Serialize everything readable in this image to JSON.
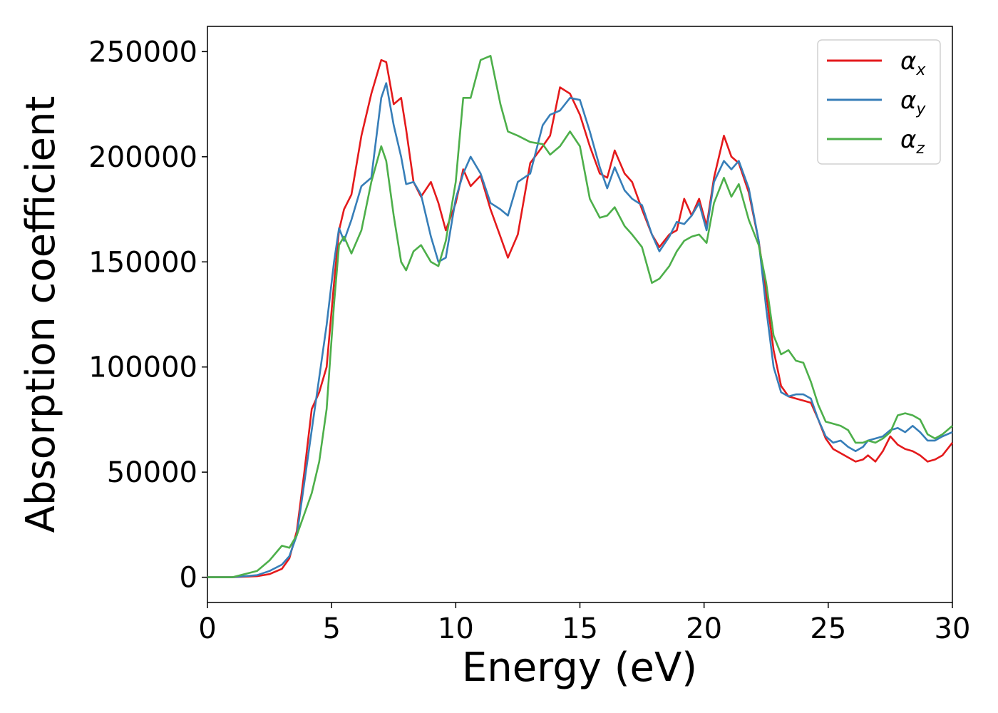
{
  "chart_data": {
    "type": "line",
    "title": "",
    "xlabel": "Energy (eV)",
    "ylabel": "Absorption coefficient",
    "xlim": [
      0,
      30
    ],
    "ylim": [
      -12000,
      262000
    ],
    "x_ticks": [
      "0",
      "5",
      "10",
      "15",
      "20",
      "25",
      "30"
    ],
    "y_ticks": [
      "0",
      "50000",
      "100000",
      "150000",
      "200000",
      "250000"
    ],
    "grid": false,
    "legend_position": "top-right",
    "series": [
      {
        "name": "α_x",
        "label_main": "α",
        "label_sub": "x",
        "color": "#e41a1c",
        "x": [
          0,
          1,
          2,
          2.5,
          3,
          3.3,
          3.6,
          3.9,
          4.2,
          4.5,
          4.8,
          5.1,
          5.3,
          5.5,
          5.8,
          6.2,
          6.6,
          7.0,
          7.2,
          7.5,
          7.8,
          8.0,
          8.3,
          8.6,
          9.0,
          9.3,
          9.6,
          10.0,
          10.3,
          10.6,
          11.0,
          11.4,
          11.8,
          12.1,
          12.5,
          13.0,
          13.5,
          13.8,
          14.2,
          14.6,
          15.0,
          15.4,
          15.8,
          16.1,
          16.4,
          16.8,
          17.1,
          17.5,
          17.9,
          18.2,
          18.6,
          18.9,
          19.2,
          19.5,
          19.8,
          20.1,
          20.4,
          20.8,
          21.1,
          21.4,
          21.8,
          22.2,
          22.5,
          22.8,
          23.1,
          23.4,
          23.7,
          24.0,
          24.3,
          24.6,
          24.9,
          25.2,
          25.5,
          25.8,
          26.1,
          26.4,
          26.6,
          26.9,
          27.2,
          27.5,
          27.8,
          28.1,
          28.4,
          28.7,
          29.0,
          29.3,
          29.6,
          30.0
        ],
        "y": [
          0,
          0,
          500,
          1500,
          4000,
          9000,
          22000,
          50000,
          80000,
          88000,
          100000,
          140000,
          165000,
          175000,
          182000,
          210000,
          230000,
          246000,
          245000,
          225000,
          228000,
          213000,
          188000,
          181000,
          188000,
          178000,
          165000,
          178000,
          194000,
          186000,
          191000,
          175000,
          162000,
          152000,
          163000,
          197000,
          205000,
          210000,
          233000,
          230000,
          220000,
          205000,
          192000,
          190000,
          203000,
          192000,
          188000,
          175000,
          163000,
          157000,
          163000,
          165000,
          180000,
          172000,
          180000,
          167000,
          190000,
          210000,
          200000,
          197000,
          183000,
          160000,
          135000,
          108000,
          91000,
          86000,
          85000,
          84000,
          83000,
          75000,
          66000,
          61000,
          59000,
          57000,
          55000,
          56000,
          58000,
          55000,
          60000,
          67000,
          63000,
          61000,
          60000,
          58000,
          55000,
          56000,
          58000,
          64000
        ]
      },
      {
        "name": "α_y",
        "label_main": "α",
        "label_sub": "y",
        "color": "#377eb8",
        "x": [
          0,
          1,
          2,
          2.5,
          3,
          3.3,
          3.6,
          3.9,
          4.2,
          4.5,
          4.8,
          5.1,
          5.3,
          5.5,
          5.8,
          6.2,
          6.6,
          7.0,
          7.2,
          7.5,
          7.8,
          8.0,
          8.3,
          8.6,
          9.0,
          9.3,
          9.6,
          10.0,
          10.3,
          10.6,
          11.0,
          11.4,
          11.8,
          12.1,
          12.5,
          13.0,
          13.5,
          13.8,
          14.2,
          14.6,
          15.0,
          15.4,
          15.8,
          16.1,
          16.4,
          16.8,
          17.1,
          17.5,
          17.9,
          18.2,
          18.6,
          18.9,
          19.2,
          19.5,
          19.8,
          20.1,
          20.4,
          20.8,
          21.1,
          21.4,
          21.8,
          22.2,
          22.5,
          22.8,
          23.1,
          23.4,
          23.7,
          24.0,
          24.3,
          24.6,
          24.9,
          25.2,
          25.5,
          25.8,
          26.1,
          26.4,
          26.6,
          26.9,
          27.2,
          27.5,
          27.8,
          28.1,
          28.4,
          28.7,
          29.0,
          29.3,
          29.6,
          30.0
        ],
        "y": [
          0,
          0,
          1000,
          3000,
          6000,
          10000,
          20000,
          45000,
          70000,
          95000,
          120000,
          150000,
          166000,
          160000,
          170000,
          186000,
          190000,
          228000,
          235000,
          215000,
          200000,
          187000,
          188000,
          182000,
          162000,
          150000,
          152000,
          180000,
          192000,
          200000,
          192000,
          178000,
          175000,
          172000,
          188000,
          192000,
          215000,
          220000,
          222000,
          228000,
          227000,
          212000,
          195000,
          185000,
          195000,
          184000,
          180000,
          177000,
          163000,
          155000,
          162000,
          169000,
          168000,
          172000,
          178000,
          165000,
          188000,
          198000,
          194000,
          198000,
          185000,
          160000,
          128000,
          100000,
          88000,
          86000,
          87000,
          87000,
          85000,
          75000,
          67000,
          64000,
          65000,
          62000,
          60000,
          62000,
          65000,
          66000,
          67000,
          70000,
          71000,
          69000,
          72000,
          69000,
          65000,
          65000,
          67000,
          69000
        ]
      },
      {
        "name": "α_z",
        "label_main": "α",
        "label_sub": "z",
        "color": "#4daf4a",
        "x": [
          0,
          1,
          2,
          2.5,
          3,
          3.3,
          3.6,
          3.9,
          4.2,
          4.5,
          4.8,
          5.1,
          5.3,
          5.5,
          5.8,
          6.2,
          6.6,
          7.0,
          7.2,
          7.5,
          7.8,
          8.0,
          8.3,
          8.6,
          9.0,
          9.3,
          9.6,
          10.0,
          10.3,
          10.6,
          11.0,
          11.4,
          11.8,
          12.1,
          12.5,
          13.0,
          13.5,
          13.8,
          14.2,
          14.6,
          15.0,
          15.4,
          15.8,
          16.1,
          16.4,
          16.8,
          17.1,
          17.5,
          17.9,
          18.2,
          18.6,
          18.9,
          19.2,
          19.5,
          19.8,
          20.1,
          20.4,
          20.8,
          21.1,
          21.4,
          21.8,
          22.2,
          22.5,
          22.8,
          23.1,
          23.4,
          23.7,
          24.0,
          24.3,
          24.6,
          24.9,
          25.2,
          25.5,
          25.8,
          26.1,
          26.4,
          26.6,
          26.9,
          27.2,
          27.5,
          27.8,
          28.1,
          28.4,
          28.7,
          29.0,
          29.3,
          29.6,
          30.0
        ],
        "y": [
          0,
          0,
          3000,
          8000,
          15000,
          14000,
          20000,
          30000,
          40000,
          55000,
          80000,
          130000,
          158000,
          162000,
          154000,
          165000,
          188000,
          205000,
          198000,
          172000,
          150000,
          146000,
          155000,
          158000,
          150000,
          148000,
          160000,
          188000,
          228000,
          228000,
          246000,
          248000,
          225000,
          212000,
          210000,
          207000,
          206000,
          201000,
          205000,
          212000,
          205000,
          180000,
          171000,
          172000,
          176000,
          167000,
          163000,
          157000,
          140000,
          142000,
          148000,
          155000,
          160000,
          162000,
          163000,
          159000,
          178000,
          190000,
          181000,
          187000,
          170000,
          158000,
          140000,
          115000,
          106000,
          108000,
          103000,
          102000,
          93000,
          82000,
          74000,
          73000,
          72000,
          70000,
          64000,
          64000,
          65000,
          64000,
          66000,
          69000,
          77000,
          78000,
          77000,
          75000,
          68000,
          66000,
          68000,
          72000
        ]
      }
    ]
  }
}
